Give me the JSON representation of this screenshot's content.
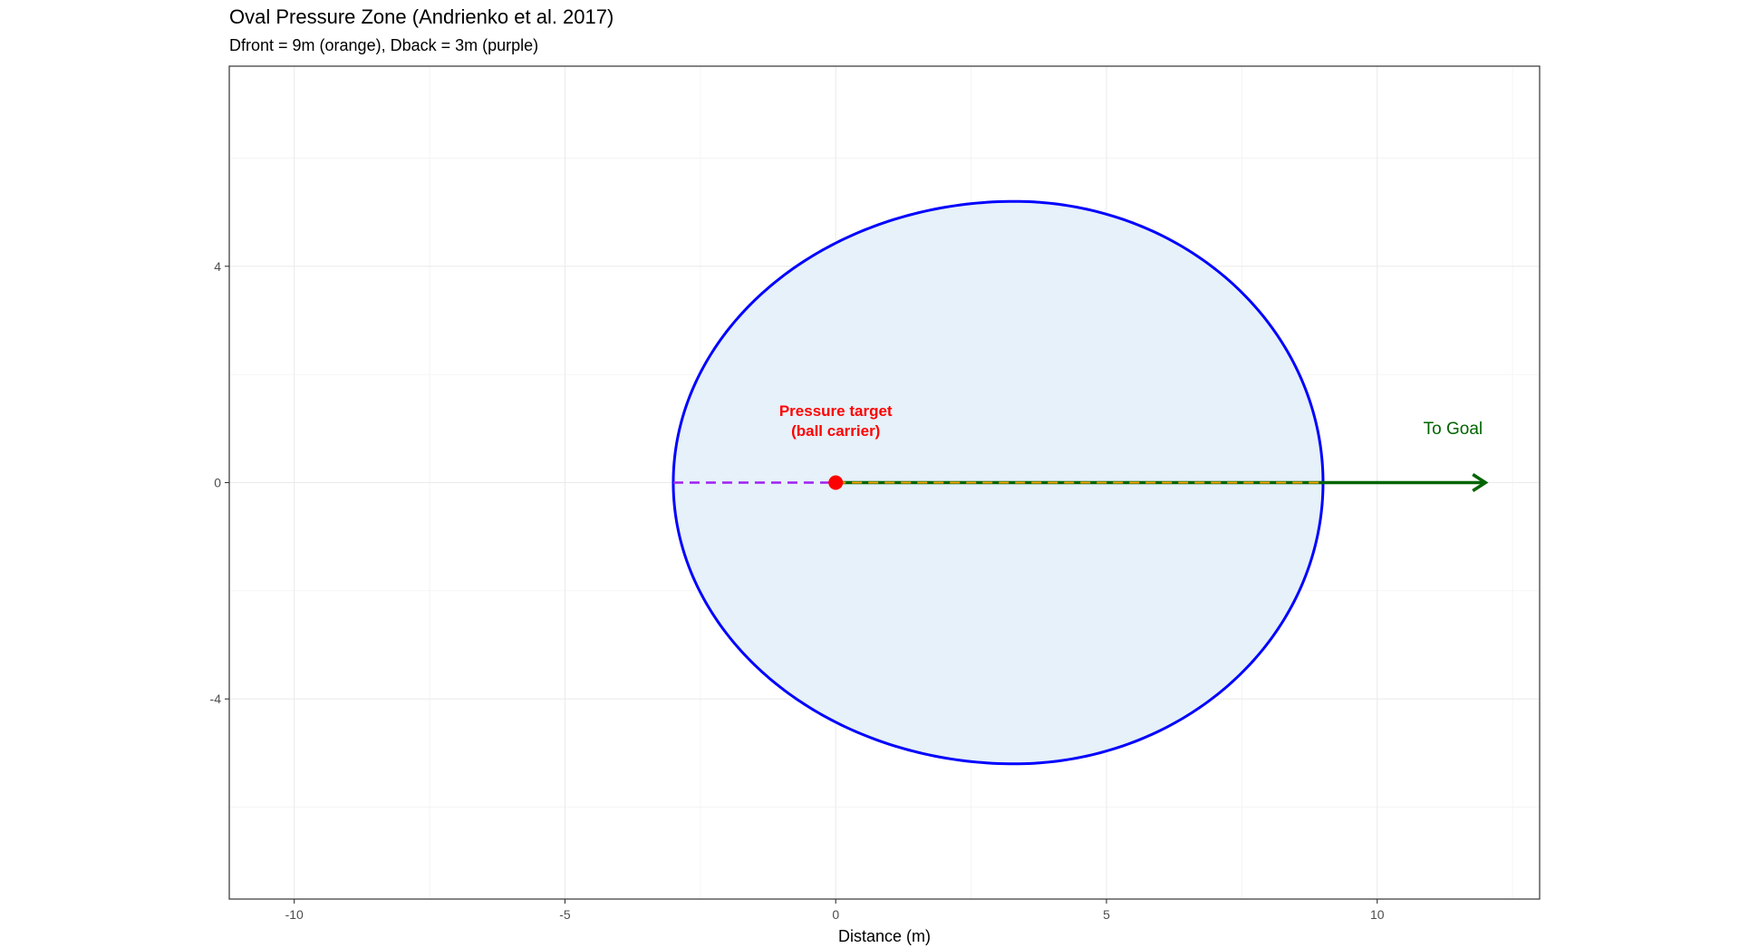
{
  "chart_data": {
    "type": "scatter",
    "title": "Oval Pressure Zone (Andrienko et al. 2017)",
    "subtitle": "Dfront = 9m (orange), Dback = 3m (purple)",
    "xlabel": "Distance (m)",
    "ylabel": "",
    "xlim": [
      -11.2,
      13.0
    ],
    "ylim": [
      -7.7,
      7.7
    ],
    "x_ticks": [
      -10,
      -5,
      0,
      5,
      10
    ],
    "x_tick_labels": [
      "-10",
      "-5",
      "0",
      "5",
      "10"
    ],
    "y_ticks": [
      -4,
      0,
      4
    ],
    "y_tick_labels": [
      "-4",
      "0",
      "4"
    ],
    "grid": true,
    "zone": {
      "dfront": 9,
      "dback": 3,
      "x_min": -3,
      "x_max": 9,
      "half_width": 5.2,
      "widest_at_x": 3.3,
      "outline_color": "#0000ff",
      "fill_color": "#e6f1f9"
    },
    "target_point": {
      "x": 0,
      "y": 0,
      "color": "#ff0000"
    },
    "back_line": {
      "x": [
        -3,
        0
      ],
      "y": [
        0,
        0
      ],
      "color": "#a020f0",
      "dashed": true
    },
    "front_line": {
      "x": [
        0,
        9
      ],
      "y": [
        0,
        0
      ],
      "color": "#ffa500",
      "dashed": true
    },
    "goal_arrow": {
      "x": [
        0,
        12
      ],
      "y": [
        0,
        0
      ],
      "color": "#006400"
    },
    "annotations": [
      {
        "text_lines": [
          "Pressure target",
          "(ball carrier)"
        ],
        "x": 0,
        "y": 1.0,
        "color": "#ff0000"
      },
      {
        "text": "To Goal",
        "x": 11.4,
        "y": 1.0,
        "color": "#006400"
      }
    ]
  }
}
